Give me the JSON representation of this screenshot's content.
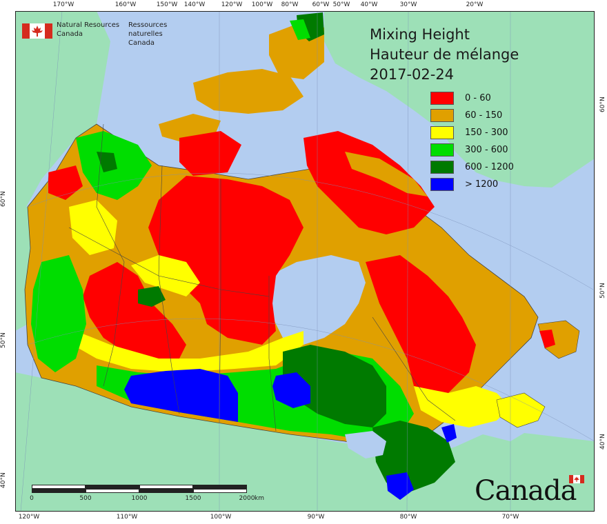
{
  "title": {
    "en": "Mixing Height",
    "fr": "Hauteur de mélange",
    "date": "2017-02-24"
  },
  "agency": {
    "en_line1": "Natural Resources",
    "en_line2": "Canada",
    "fr_line1": "Ressources naturelles",
    "fr_line2": "Canada"
  },
  "wordmark": "Canada",
  "legend": [
    {
      "label": "0 - 60",
      "color": "#ff0000"
    },
    {
      "label": "60 - 150",
      "color": "#e0a000"
    },
    {
      "label": "150 - 300",
      "color": "#ffff00"
    },
    {
      "label": "300 - 600",
      "color": "#00dd00"
    },
    {
      "label": "600 - 1200",
      "color": "#007a00"
    },
    {
      "label": "> 1200",
      "color": "#0000ff"
    }
  ],
  "graticule": {
    "top": [
      "170°W",
      "160°W",
      "150°W",
      "140°W",
      "120°W",
      "100°W",
      "80°W",
      "60°W",
      "50°W",
      "40°W",
      "30°W",
      "20°W"
    ],
    "bottom": [
      "120°W",
      "110°W",
      "100°W",
      "90°W",
      "80°W",
      "70°W"
    ],
    "left": [
      "60°N",
      "50°N",
      "40°N"
    ],
    "right": [
      "60°N",
      "50°N",
      "40°N"
    ]
  },
  "scalebar": {
    "labels": [
      "0",
      "500",
      "1000",
      "1500",
      "2000"
    ],
    "unit": "km"
  },
  "colors": {
    "ocean": "#b3cdf0",
    "foreign_land": "#9de0b7",
    "border": "#444444"
  }
}
